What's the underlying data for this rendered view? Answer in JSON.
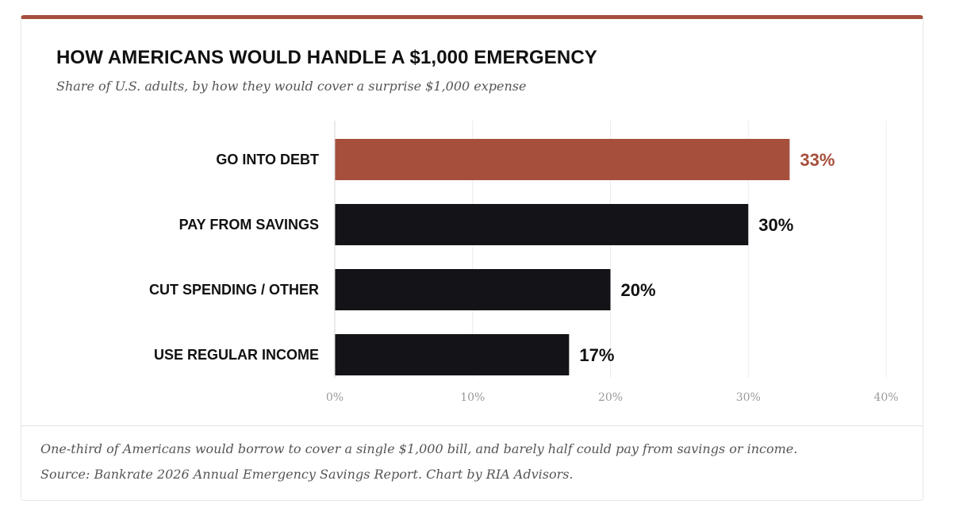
{
  "title": "HOW AMERICANS WOULD HANDLE A $1,000 EMERGENCY",
  "subtitle": "Share of U.S. adults, by how they would cover a surprise $1,000 expense",
  "footnote": "One-third of Americans would borrow to cover a single $1,000 bill, and barely half could pay from savings or income.",
  "source": "Source: Bankrate 2026 Annual Emergency Savings Report. Chart by RIA Advisors.",
  "colors": {
    "accent": "#a64f3c",
    "bar": "#141418",
    "grid": "#ececec",
    "tick": "#9a9a9a"
  },
  "chart_data": {
    "type": "bar",
    "orientation": "horizontal",
    "categories": [
      "GO INTO DEBT",
      "PAY FROM SAVINGS",
      "CUT SPENDING / OTHER",
      "USE REGULAR INCOME"
    ],
    "values": [
      33,
      30,
      20,
      17
    ],
    "value_labels": [
      "33%",
      "30%",
      "20%",
      "17%"
    ],
    "highlight_index": 0,
    "xlim": [
      0,
      40
    ],
    "xticks": [
      0,
      10,
      20,
      30,
      40
    ],
    "xtick_labels": [
      "0%",
      "10%",
      "20%",
      "30%",
      "40%"
    ],
    "grid": true,
    "legend": "none"
  }
}
